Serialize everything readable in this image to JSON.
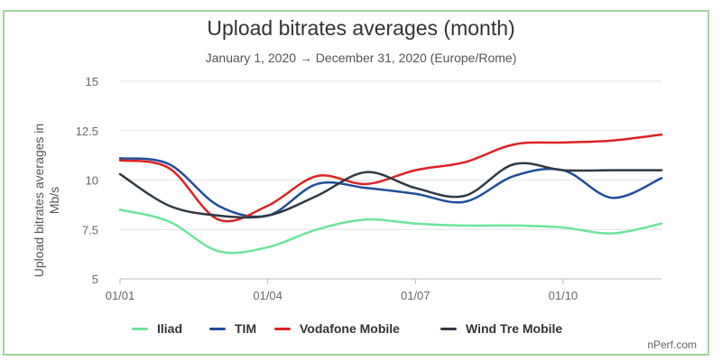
{
  "chart_data": {
    "type": "line",
    "title": "Upload bitrates averages (month)",
    "subtitle": "January 1, 2020 → December 31, 2020 (Europe/Rome)",
    "xlabel": "",
    "ylabel": "Upload bitrates averages in Mb/s",
    "ylim": [
      5,
      15
    ],
    "yticks": [
      "5",
      "7.5",
      "10",
      "12.5",
      "15"
    ],
    "xtick_labels": [
      "01/01",
      "01/04",
      "01/07",
      "01/10"
    ],
    "x": [
      "01/01",
      "01/02",
      "01/03",
      "01/04",
      "01/05",
      "01/06",
      "01/07",
      "01/08",
      "01/09",
      "01/10",
      "01/11",
      "01/12"
    ],
    "grid": "horizontal",
    "legend": "bottom",
    "series": [
      {
        "name": "Iliad",
        "color": "#6ee49a",
        "values": [
          8.5,
          7.9,
          6.4,
          6.6,
          7.5,
          8.0,
          7.8,
          7.7,
          7.7,
          7.6,
          7.3,
          7.8
        ]
      },
      {
        "name": "TIM",
        "color": "#1f4e9c",
        "values": [
          11.1,
          10.8,
          8.7,
          8.2,
          9.8,
          9.6,
          9.3,
          8.9,
          10.2,
          10.5,
          9.1,
          10.1
        ]
      },
      {
        "name": "Vodafone Mobile",
        "color": "#dd2222",
        "values": [
          11.0,
          10.6,
          8.0,
          8.7,
          10.2,
          9.8,
          10.5,
          10.9,
          11.8,
          11.9,
          12.0,
          12.3
        ]
      },
      {
        "name": "Wind Tre Mobile",
        "color": "#2f3a45",
        "values": [
          10.3,
          8.7,
          8.2,
          8.2,
          9.2,
          10.4,
          9.6,
          9.2,
          10.8,
          10.5,
          10.5,
          10.5
        ]
      }
    ]
  },
  "credit": "nPerf.com"
}
